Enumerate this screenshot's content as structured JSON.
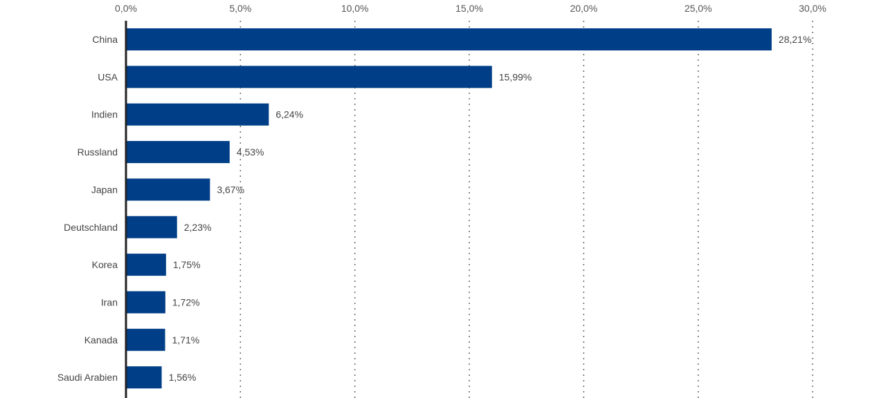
{
  "chart_data": {
    "type": "bar",
    "orientation": "horizontal",
    "categories": [
      "China",
      "USA",
      "Indien",
      "Russland",
      "Japan",
      "Deutschland",
      "Korea",
      "Iran",
      "Kanada",
      "Saudi Arabien"
    ],
    "values": [
      28.21,
      15.99,
      6.24,
      4.53,
      3.67,
      2.23,
      1.75,
      1.72,
      1.71,
      1.56
    ],
    "data_labels": [
      "28,21%",
      "15,99%",
      "6,24%",
      "4,53%",
      "3,67%",
      "2,23%",
      "1,75%",
      "1,72%",
      "1,71%",
      "1,56%"
    ],
    "xlim": [
      0,
      30
    ],
    "x_ticks": [
      0,
      5,
      10,
      15,
      20,
      25,
      30
    ],
    "x_tick_labels": [
      "0,0%",
      "5,0%",
      "10,0%",
      "15,0%",
      "20,0%",
      "25,0%",
      "30,0%"
    ],
    "x_axis_position": "top",
    "grid": "vertical dotted",
    "legend": "none",
    "title": "",
    "xlabel": "",
    "ylabel": "",
    "colors": {
      "bar": "#003f87",
      "axis": "#222222",
      "grid": "#666666"
    }
  }
}
